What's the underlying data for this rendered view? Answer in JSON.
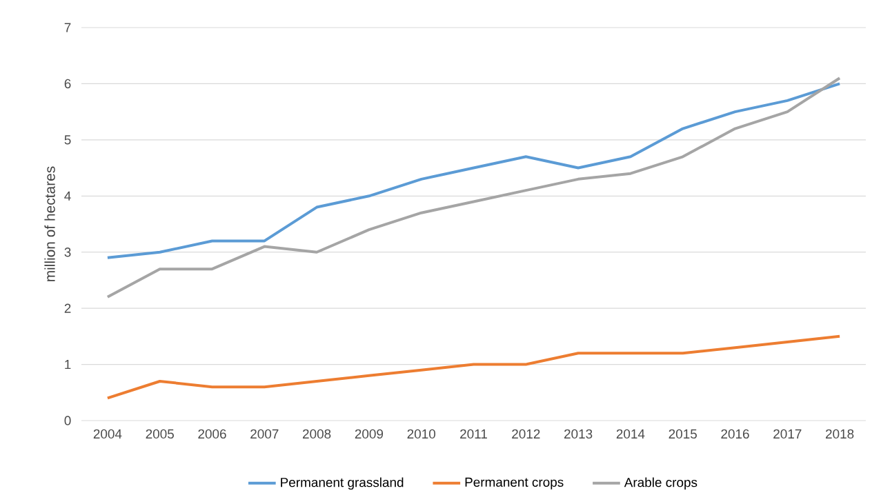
{
  "chart_data": {
    "type": "line",
    "ylabel": "million of hectares",
    "categories": [
      "2004",
      "2005",
      "2006",
      "2007",
      "2008",
      "2009",
      "2010",
      "2011",
      "2012",
      "2013",
      "2014",
      "2015",
      "2016",
      "2017",
      "2018"
    ],
    "series": [
      {
        "name": "Permanent grassland",
        "color": "#5b9bd5",
        "values": [
          2.9,
          3.0,
          3.2,
          3.2,
          3.8,
          4.0,
          4.3,
          4.5,
          4.7,
          4.5,
          4.7,
          5.2,
          5.5,
          5.7,
          6.0
        ]
      },
      {
        "name": "Permanent crops",
        "color": "#ed7d31",
        "values": [
          0.4,
          0.7,
          0.6,
          0.6,
          0.7,
          0.8,
          0.9,
          1.0,
          1.0,
          1.2,
          1.2,
          1.2,
          1.3,
          1.4,
          1.5
        ]
      },
      {
        "name": "Arable crops",
        "color": "#a5a5a5",
        "values": [
          2.2,
          2.7,
          2.7,
          3.1,
          3.0,
          3.4,
          3.7,
          3.9,
          4.1,
          4.3,
          4.4,
          4.7,
          5.2,
          5.5,
          6.1
        ]
      }
    ],
    "ylim": [
      0,
      7
    ],
    "yticks": [
      0,
      1,
      2,
      3,
      4,
      5,
      6,
      7
    ],
    "grid": "y",
    "legend": "bottom"
  }
}
